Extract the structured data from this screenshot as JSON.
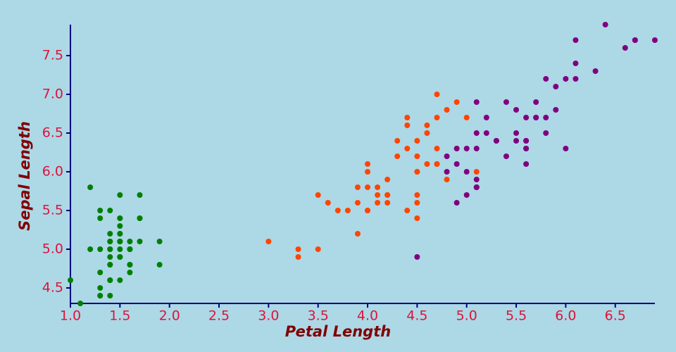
{
  "chart_data": {
    "type": "scatter",
    "x_label": "Petal Length",
    "y_label": "Sepal Length",
    "xlim": [
      1.0,
      6.9
    ],
    "ylim": [
      4.3,
      7.9
    ],
    "xticks": [
      {
        "value": 1,
        "label": "1.0"
      },
      1.5,
      {
        "value": 2,
        "label": "2.0"
      },
      2.5,
      {
        "value": 3,
        "label": "3.0"
      },
      3.5,
      {
        "value": 4,
        "label": "4.0"
      },
      4.5,
      {
        "value": 5,
        "label": "5.0"
      },
      5.5,
      {
        "value": 6,
        "label": "6.0"
      },
      6.5
    ],
    "yticks": [
      4.5,
      {
        "value": 5,
        "label": "5.0"
      },
      5.5,
      {
        "value": 6,
        "label": "6.0"
      },
      6.5,
      {
        "value": 7,
        "label": "7.0"
      },
      7.5
    ],
    "series": [
      {
        "color": "#008000",
        "x": [
          1.4,
          1.4,
          1.3,
          1.5,
          1.4,
          1.7,
          1.4,
          1.5,
          1.4,
          1.5,
          1.5,
          1.6,
          1.4,
          1.1,
          1.2,
          1.5,
          1.3,
          1.4,
          1.7,
          1.5,
          1.7,
          1.5,
          1.0,
          1.7,
          1.9,
          1.6,
          1.6,
          1.5,
          1.4,
          1.6,
          1.6,
          1.5,
          1.5,
          1.4,
          1.5,
          1.2,
          1.3,
          1.5,
          1.3,
          1.5,
          1.3,
          1.3,
          1.3,
          1.6,
          1.9,
          1.4,
          1.6,
          1.4,
          1.5,
          1.4
        ],
        "values": [
          5.1,
          4.9,
          4.7,
          4.6,
          5.0,
          5.4,
          4.6,
          5.0,
          4.4,
          4.9,
          5.4,
          4.8,
          4.8,
          4.3,
          5.8,
          5.7,
          5.4,
          5.1,
          5.7,
          5.1,
          5.4,
          5.1,
          4.6,
          5.1,
          4.8,
          5.0,
          5.0,
          5.2,
          5.2,
          4.7,
          4.8,
          5.4,
          5.2,
          5.5,
          4.9,
          5.0,
          5.5,
          4.9,
          4.4,
          5.1,
          5.0,
          4.5,
          4.4,
          5.0,
          5.1,
          4.8,
          5.1,
          4.6,
          5.3,
          5.0
        ]
      },
      {
        "color": "#ff4500",
        "x": [
          4.7,
          4.5,
          4.9,
          4.0,
          4.6,
          4.5,
          4.7,
          3.3,
          4.6,
          3.9,
          3.5,
          4.2,
          4.0,
          4.7,
          3.6,
          4.4,
          4.5,
          4.1,
          4.5,
          3.9,
          4.8,
          4.0,
          4.9,
          4.7,
          4.3,
          4.4,
          4.8,
          5.0,
          4.5,
          3.5,
          3.8,
          3.7,
          3.9,
          5.1,
          4.5,
          4.5,
          4.7,
          4.4,
          4.1,
          4.0,
          4.4,
          4.6,
          4.0,
          3.3,
          4.2,
          4.2,
          4.2,
          4.3,
          3.0,
          4.1
        ],
        "values": [
          7.0,
          6.4,
          6.9,
          5.5,
          6.5,
          5.7,
          6.3,
          4.9,
          6.6,
          5.2,
          5.0,
          5.9,
          6.0,
          6.1,
          5.6,
          6.7,
          5.6,
          5.8,
          6.2,
          5.6,
          5.9,
          6.1,
          6.3,
          6.1,
          6.4,
          6.6,
          6.8,
          6.7,
          6.0,
          5.7,
          5.5,
          5.5,
          5.8,
          6.0,
          5.4,
          6.0,
          6.7,
          6.3,
          5.6,
          5.5,
          5.5,
          6.1,
          5.8,
          5.0,
          5.6,
          5.7,
          5.7,
          6.2,
          5.1,
          5.7
        ]
      },
      {
        "color": "#800080",
        "x": [
          6.0,
          5.1,
          5.9,
          5.6,
          5.8,
          6.6,
          4.5,
          6.3,
          5.8,
          6.1,
          5.1,
          5.3,
          5.5,
          5.0,
          5.1,
          5.3,
          5.5,
          6.7,
          6.9,
          5.0,
          5.7,
          4.9,
          6.7,
          4.9,
          5.7,
          6.0,
          4.8,
          4.9,
          5.6,
          5.8,
          6.1,
          6.4,
          5.6,
          5.1,
          5.6,
          6.1,
          5.6,
          5.5,
          4.8,
          5.4,
          5.6,
          5.1,
          5.1,
          5.9,
          5.7,
          5.2,
          5.0,
          5.2,
          5.4,
          5.1
        ],
        "values": [
          6.3,
          5.8,
          7.1,
          6.3,
          6.5,
          7.6,
          4.9,
          7.3,
          6.7,
          7.2,
          6.5,
          6.4,
          6.8,
          5.7,
          5.8,
          6.4,
          6.5,
          7.7,
          7.7,
          6.0,
          6.9,
          5.6,
          7.7,
          6.3,
          6.7,
          7.2,
          6.2,
          6.1,
          6.4,
          7.2,
          7.4,
          7.9,
          6.4,
          6.3,
          6.1,
          7.7,
          6.3,
          6.4,
          6.0,
          6.9,
          6.7,
          6.9,
          5.8,
          6.8,
          6.7,
          6.7,
          6.3,
          6.5,
          6.2,
          5.9
        ]
      }
    ]
  }
}
